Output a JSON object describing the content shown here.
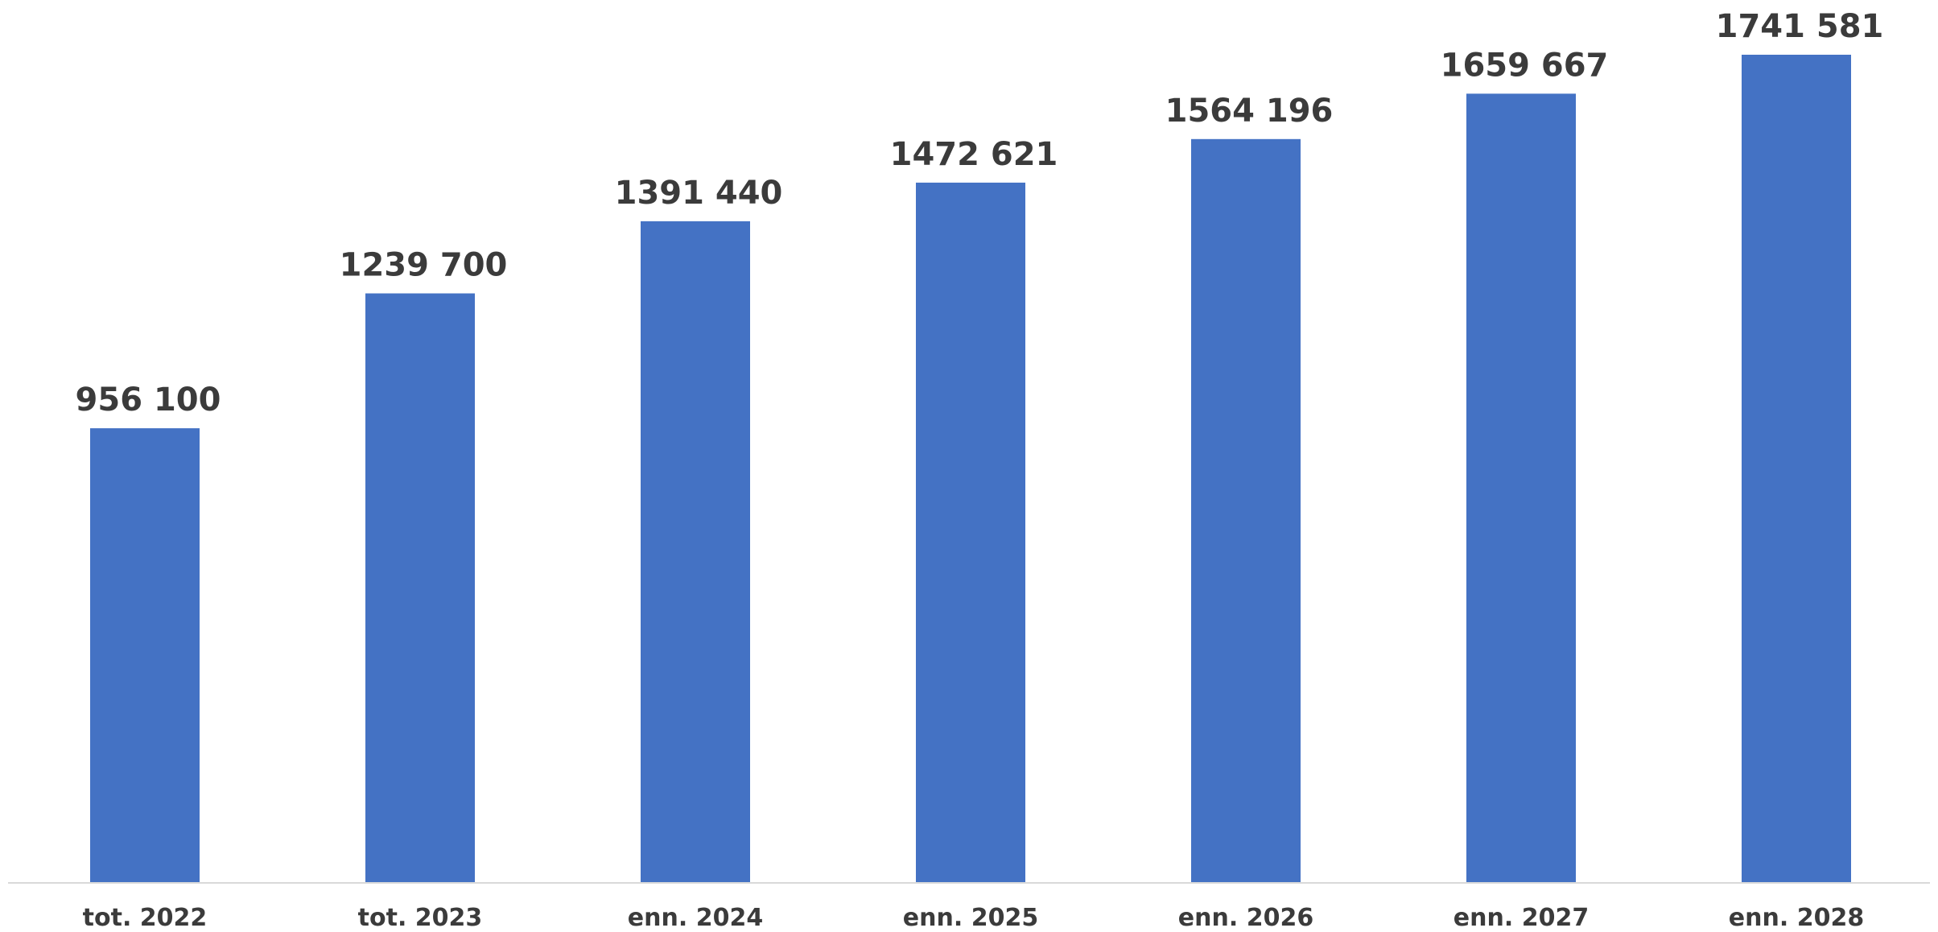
{
  "chart_data": {
    "type": "bar",
    "categories": [
      "tot. 2022",
      "tot. 2023",
      "enn. 2024",
      "enn. 2025",
      "enn. 2026",
      "enn. 2027",
      "enn. 2028"
    ],
    "values": [
      956100,
      1239700,
      1391440,
      1472621,
      1564196,
      1659667,
      1741581
    ],
    "data_labels": [
      "956 100",
      "1239 700",
      "1391 440",
      "1472 621",
      "1564 196",
      "1659 667",
      "1741 581"
    ],
    "title": "",
    "xlabel": "",
    "ylabel": "",
    "ylim": [
      0,
      1750000
    ],
    "grid": false,
    "legend": "none",
    "colors": {
      "bar": "#4472c4",
      "axis": "#d9d9d9",
      "text": "#3b3b3b"
    }
  }
}
